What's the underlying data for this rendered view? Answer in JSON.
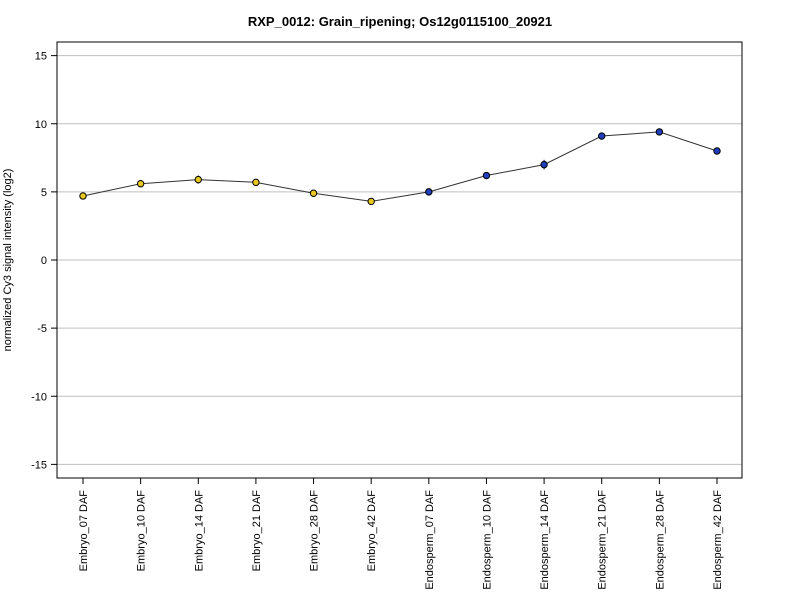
{
  "chart_data": {
    "type": "line",
    "title": "RXP_0012: Grain_ripening; Os12g0115100_20921",
    "xlabel": "",
    "ylabel": "normalized Cy3 signal intensity (log2)",
    "ylim": [
      -16,
      16
    ],
    "yticks": [
      "15",
      "10",
      "5",
      "0",
      "-5",
      "-10",
      "-15"
    ],
    "ytick_values": [
      15,
      10,
      5,
      0,
      -5,
      -10,
      -15
    ],
    "grid": "horizontal",
    "categories": [
      "Embryo_07 DAF",
      "Embryo_10 DAF",
      "Embryo_14 DAF",
      "Embryo_21 DAF",
      "Embryo_28 DAF",
      "Embryo_42 DAF",
      "Endosperm_07 DAF",
      "Endosperm_10 DAF",
      "Endosperm_14 DAF",
      "Endosperm_21 DAF",
      "Endosperm_28 DAF",
      "Endosperm_42 DAF"
    ],
    "values": [
      4.7,
      5.6,
      5.9,
      5.7,
      4.9,
      4.3,
      5.0,
      6.2,
      7.0,
      9.1,
      9.4,
      8.0
    ],
    "errors": [
      0.15,
      0.15,
      0.3,
      0.15,
      0.15,
      0.15,
      0.2,
      0.15,
      0.35,
      0.15,
      0.1,
      0.1
    ],
    "point_colors": [
      "#e8c81e",
      "#e8c81e",
      "#e8c81e",
      "#e8c81e",
      "#e8c81e",
      "#e8c81e",
      "#1f3fbf",
      "#1f3fbf",
      "#1f3fbf",
      "#1f3fbf",
      "#1f3fbf",
      "#1f3fbf"
    ],
    "line_color": "#333333",
    "grid_color": "#bfbfbf"
  }
}
